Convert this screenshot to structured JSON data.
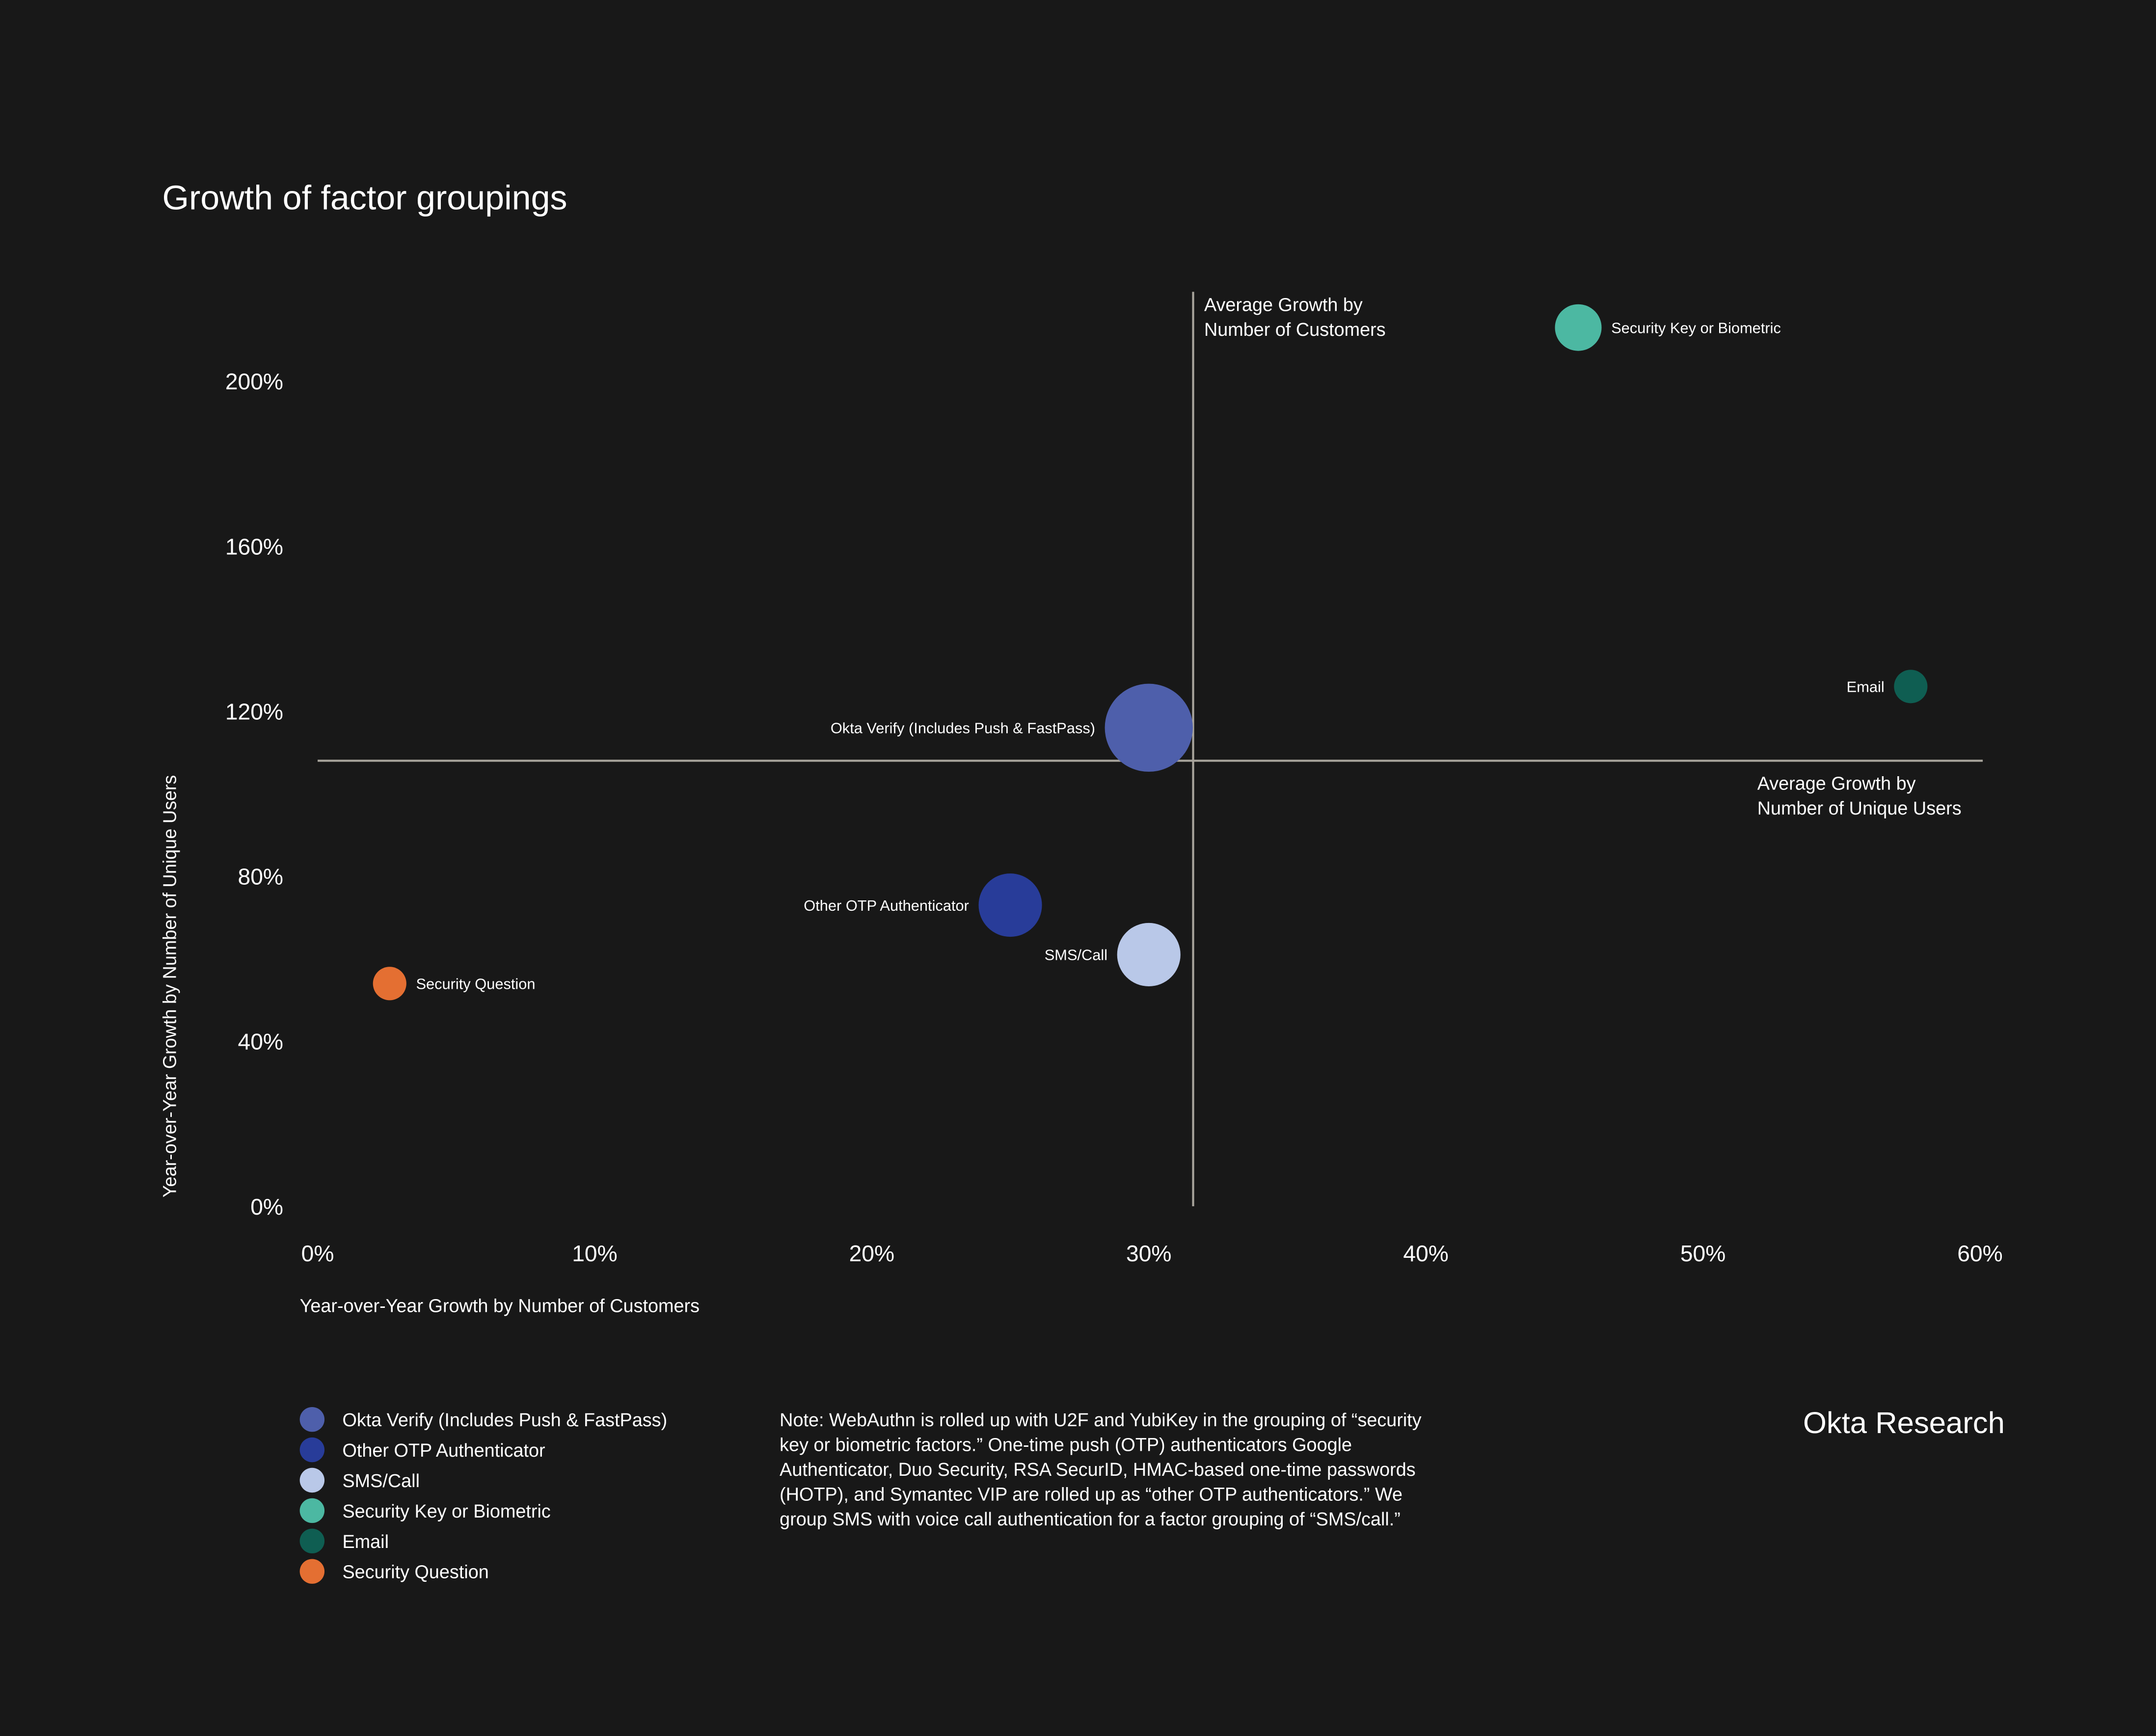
{
  "chart_data": {
    "type": "scatter",
    "title": "Growth of factor groupings",
    "xlabel": "Year-over-Year Growth by Number of Customers",
    "ylabel": "Year-over-Year Growth by Number of Unique Users",
    "xlim": [
      0,
      60
    ],
    "ylim": [
      0,
      220
    ],
    "x_ticks": [
      "0%",
      "10%",
      "20%",
      "30%",
      "40%",
      "50%",
      "60%"
    ],
    "y_ticks": [
      "0%",
      "40%",
      "80%",
      "120%",
      "160%",
      "200%"
    ],
    "grid": false,
    "legend_position": "bottom-left",
    "reference_lines": {
      "vertical": {
        "x": 31.6,
        "label_line1": "Average Growth by",
        "label_line2": "Number of Customers"
      },
      "horizontal": {
        "y": 108,
        "label_line1": "Average Growth by",
        "label_line2": "Number of Unique Users"
      }
    },
    "series": [
      {
        "name": "Okta Verify (Includes Push & FastPass)",
        "x": 30.0,
        "y": 116,
        "relative_size": 1.0,
        "color": "#4e5fab"
      },
      {
        "name": "Other OTP Authenticator",
        "x": 25.0,
        "y": 73,
        "relative_size": 0.72,
        "color": "#283c99"
      },
      {
        "name": "SMS/Call",
        "x": 30.0,
        "y": 61,
        "relative_size": 0.72,
        "color": "#b9c8e8"
      },
      {
        "name": "Security Key or Biometric",
        "x": 45.5,
        "y": 213,
        "relative_size": 0.53,
        "color": "#4cb8a2"
      },
      {
        "name": "Email",
        "x": 57.5,
        "y": 126,
        "relative_size": 0.38,
        "color": "#0f5e52"
      },
      {
        "name": "Security Question",
        "x": 2.6,
        "y": 54,
        "relative_size": 0.38,
        "color": "#e46f32"
      }
    ]
  },
  "note": [
    "Note: WebAuthn is rolled up with U2F and YubiKey in the grouping of “security",
    "key or biometric factors.” One-time push (OTP) authenticators Google",
    "Authenticator, Duo Security, RSA SecurID, HMAC-based one-time passwords",
    "(HOTP), and Symantec VIP are rolled up as “other OTP authenticators.” We",
    "group SMS with voice call authentication for a factor grouping of “SMS/call.”"
  ],
  "brand": "Okta Research",
  "colors": {
    "background": "#181818",
    "reference_line": "#a8a49c",
    "text": "#ffffff"
  }
}
